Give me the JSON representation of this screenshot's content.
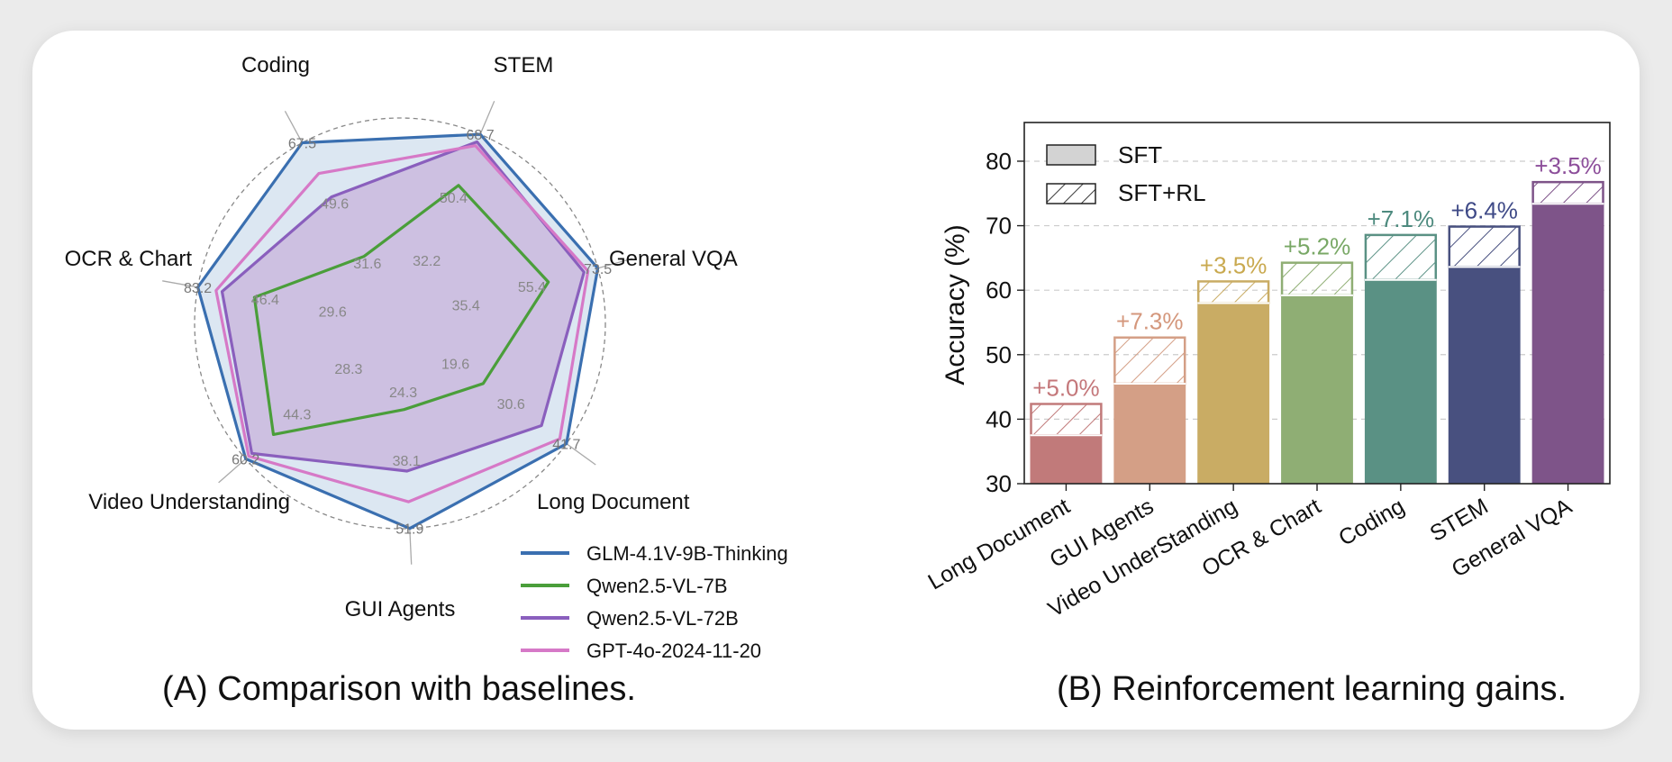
{
  "chart_data": [
    {
      "type": "radar",
      "caption": "(A) Comparison with baselines.",
      "axes": [
        "STEM",
        "General VQA",
        "Long Document",
        "GUI Agents",
        "Video Understanding",
        "OCR & Chart",
        "Coding"
      ],
      "axis_max_labels": [
        "68.7",
        "73.5",
        "41.7",
        "51.9",
        "60.2",
        "83.2",
        "67.5"
      ],
      "ring_tick_labels": [
        {
          "axis": "STEM",
          "labels": [
            "32.2",
            "50.4"
          ]
        },
        {
          "axis": "General VQA",
          "labels": [
            "35.4",
            "55.4"
          ]
        },
        {
          "axis": "Long Document",
          "labels": [
            "19.6",
            "30.6"
          ]
        },
        {
          "axis": "GUI Agents",
          "labels": [
            "24.3",
            "38.1"
          ]
        },
        {
          "axis": "Video Understanding",
          "labels": [
            "28.3",
            "44.3"
          ]
        },
        {
          "axis": "OCR & Chart",
          "labels": [
            "29.6",
            "46.4"
          ]
        },
        {
          "axis": "Coding",
          "labels": [
            "31.6",
            "49.6"
          ]
        }
      ],
      "series": [
        {
          "name": "GLM-4.1V-9B-Thinking",
          "color": "#3a6fb0",
          "fill": "#dce7f2",
          "values": [
            1.0,
            1.0,
            1.0,
            1.0,
            1.0,
            1.0,
            1.0
          ]
        },
        {
          "name": "Qwen2.5-VL-7B",
          "color": "#4a9e3a",
          "fill": "",
          "values": [
            0.73,
            0.75,
            0.5,
            0.42,
            0.82,
            0.72,
            0.37
          ]
        },
        {
          "name": "Qwen2.5-VL-72B",
          "color": "#8a5fbd",
          "fill": "#c9b6dc",
          "values": [
            0.96,
            0.93,
            0.85,
            0.72,
            0.96,
            0.88,
            0.7
          ]
        },
        {
          "name": "GPT-4o-2024-11-20",
          "color": "#d679c7",
          "fill": "",
          "values": [
            0.94,
            0.95,
            0.96,
            0.87,
            0.98,
            0.91,
            0.83
          ]
        }
      ]
    },
    {
      "type": "bar",
      "caption": "(B) Reinforcement learning gains.",
      "categories": [
        "Long Document",
        "GUI Agents",
        "Video UnderStanding",
        "OCR & Chart",
        "Coding",
        "STEM",
        "General VQA"
      ],
      "series": [
        {
          "name": "SFT",
          "values": [
            37.5,
            45.5,
            58.0,
            59.2,
            61.6,
            63.6,
            73.4
          ]
        },
        {
          "name": "SFT+RL",
          "values": [
            42.5,
            52.8,
            61.5,
            64.4,
            68.7,
            70.0,
            76.9
          ]
        }
      ],
      "gain_labels": [
        "+5.0%",
        "+7.3%",
        "+3.5%",
        "+5.2%",
        "+7.1%",
        "+6.4%",
        "+3.5%"
      ],
      "colors": [
        "#c17a7a",
        "#d49f86",
        "#c9ac64",
        "#8fae74",
        "#5a9184",
        "#48507f",
        "#7e5489"
      ],
      "label_colors": [
        "#c4777a",
        "#d4977c",
        "#c9a94f",
        "#79a866",
        "#4d8a7e",
        "#3f4a87",
        "#8c4e9a"
      ],
      "ylabel": "Accuracy (%)",
      "ylim": [
        30,
        86
      ],
      "yticks": [
        30,
        40,
        50,
        60,
        70,
        80
      ],
      "grid": "horizontal dashed",
      "legend_position": "top-left"
    }
  ]
}
